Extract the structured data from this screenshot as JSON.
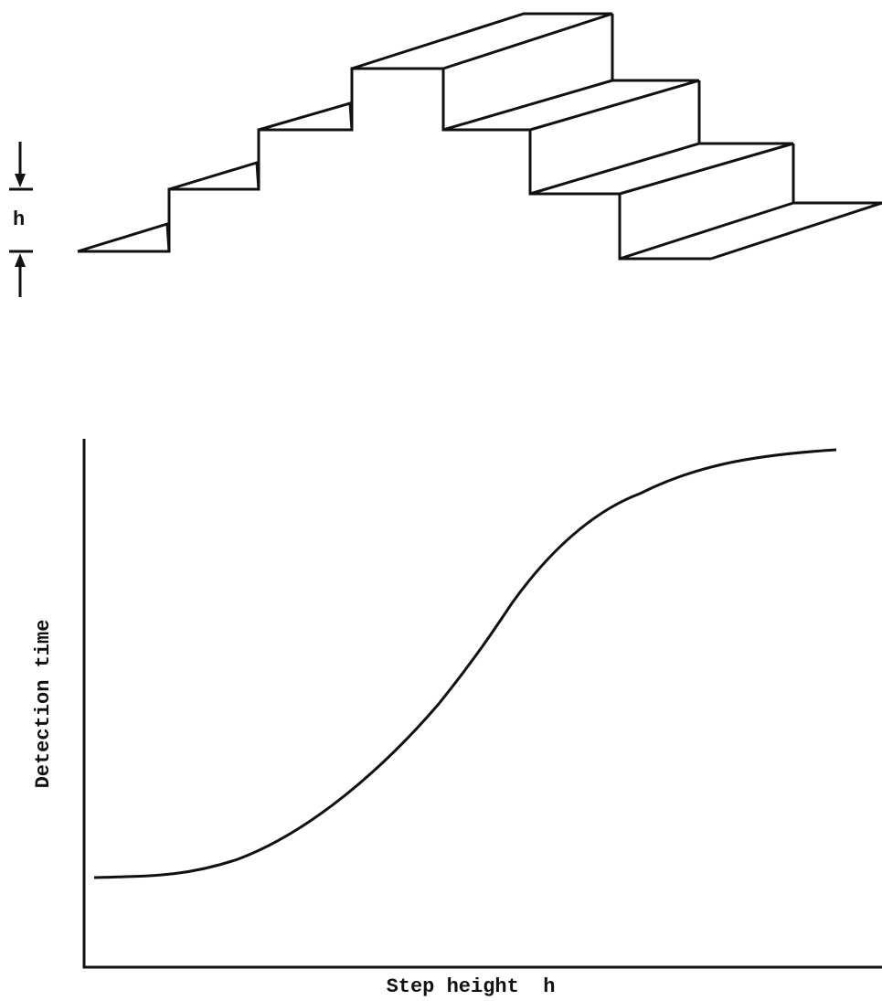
{
  "staircase": {
    "dimension_label": "h"
  },
  "graph": {
    "y_axis_label": "Detection time",
    "x_axis_label": "Step height  h"
  }
}
